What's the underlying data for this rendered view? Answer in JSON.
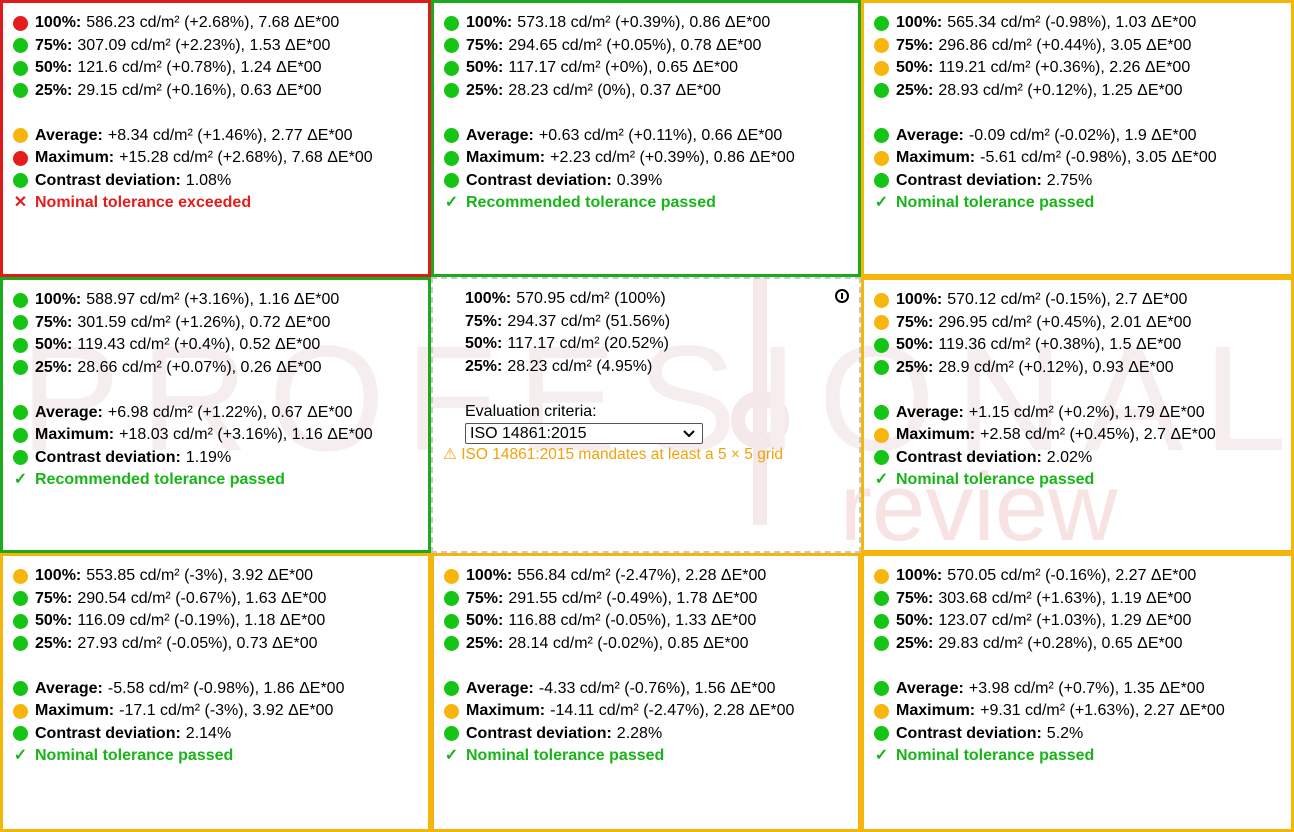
{
  "colors": {
    "green": "#15c415",
    "yellow": "#f7b50e",
    "red": "#e51c1c",
    "warning": "#f0a30a"
  },
  "center": {
    "rows": [
      {
        "label": "100%:",
        "value": "570.95 cd/m² (100%)"
      },
      {
        "label": "75%:",
        "value": "294.37 cd/m² (51.56%)"
      },
      {
        "label": "50%:",
        "value": "117.17 cd/m² (20.52%)"
      },
      {
        "label": "25%:",
        "value": "28.23 cd/m² (4.95%)"
      }
    ],
    "criteria_label": "Evaluation criteria:",
    "criteria_selected": "ISO 14861:2015",
    "warning": "⚠ ISO 14861:2015 mandates at least a 5 × 5 grid",
    "info_icon": "info-circle-icon"
  },
  "cells": [
    {
      "border": "red",
      "rows": [
        {
          "status": "red",
          "label": "100%:",
          "value": "586.23 cd/m² (+2.68%), 7.68 ΔE*00"
        },
        {
          "status": "green",
          "label": "75%:",
          "value": "307.09 cd/m² (+2.23%), 1.53 ΔE*00"
        },
        {
          "status": "green",
          "label": "50%:",
          "value": "121.6 cd/m² (+0.78%), 1.24 ΔE*00"
        },
        {
          "status": "green",
          "label": "25%:",
          "value": "29.15 cd/m² (+0.16%), 0.63 ΔE*00"
        }
      ],
      "summary": [
        {
          "status": "yellow",
          "label": "Average:",
          "value": "+8.34 cd/m² (+1.46%), 2.77 ΔE*00"
        },
        {
          "status": "red",
          "label": "Maximum:",
          "value": "+15.28 cd/m² (+2.68%), 7.68 ΔE*00"
        },
        {
          "status": "green",
          "label": "Contrast deviation:",
          "value": "1.08%"
        }
      ],
      "result": {
        "pass": false,
        "mark": "✕",
        "text": "Nominal tolerance exceeded"
      }
    },
    {
      "border": "green",
      "rows": [
        {
          "status": "green",
          "label": "100%:",
          "value": "573.18 cd/m² (+0.39%), 0.86 ΔE*00"
        },
        {
          "status": "green",
          "label": "75%:",
          "value": "294.65 cd/m² (+0.05%), 0.78 ΔE*00"
        },
        {
          "status": "green",
          "label": "50%:",
          "value": "117.17 cd/m² (+0%), 0.65 ΔE*00"
        },
        {
          "status": "green",
          "label": "25%:",
          "value": "28.23 cd/m² (0%), 0.37 ΔE*00"
        }
      ],
      "summary": [
        {
          "status": "green",
          "label": "Average:",
          "value": "+0.63 cd/m² (+0.11%), 0.66 ΔE*00"
        },
        {
          "status": "green",
          "label": "Maximum:",
          "value": "+2.23 cd/m² (+0.39%), 0.86 ΔE*00"
        },
        {
          "status": "green",
          "label": "Contrast deviation:",
          "value": "0.39%"
        }
      ],
      "result": {
        "pass": true,
        "mark": "✓",
        "text": "Recommended tolerance passed"
      }
    },
    {
      "border": "yellow",
      "rows": [
        {
          "status": "green",
          "label": "100%:",
          "value": "565.34 cd/m² (-0.98%), 1.03 ΔE*00"
        },
        {
          "status": "yellow",
          "label": "75%:",
          "value": "296.86 cd/m² (+0.44%), 3.05 ΔE*00"
        },
        {
          "status": "yellow",
          "label": "50%:",
          "value": "119.21 cd/m² (+0.36%), 2.26 ΔE*00"
        },
        {
          "status": "green",
          "label": "25%:",
          "value": "28.93 cd/m² (+0.12%), 1.25 ΔE*00"
        }
      ],
      "summary": [
        {
          "status": "green",
          "label": "Average:",
          "value": "-0.09 cd/m² (-0.02%), 1.9 ΔE*00"
        },
        {
          "status": "yellow",
          "label": "Maximum:",
          "value": "-5.61 cd/m² (-0.98%), 3.05 ΔE*00"
        },
        {
          "status": "green",
          "label": "Contrast deviation:",
          "value": "2.75%"
        }
      ],
      "result": {
        "pass": true,
        "mark": "✓",
        "text": "Nominal tolerance passed"
      }
    },
    {
      "border": "green",
      "rows": [
        {
          "status": "green",
          "label": "100%:",
          "value": "588.97 cd/m² (+3.16%), 1.16 ΔE*00"
        },
        {
          "status": "green",
          "label": "75%:",
          "value": "301.59 cd/m² (+1.26%), 0.72 ΔE*00"
        },
        {
          "status": "green",
          "label": "50%:",
          "value": "119.43 cd/m² (+0.4%), 0.52 ΔE*00"
        },
        {
          "status": "green",
          "label": "25%:",
          "value": "28.66 cd/m² (+0.07%), 0.26 ΔE*00"
        }
      ],
      "summary": [
        {
          "status": "green",
          "label": "Average:",
          "value": "+6.98 cd/m² (+1.22%), 0.67 ΔE*00"
        },
        {
          "status": "green",
          "label": "Maximum:",
          "value": "+18.03 cd/m² (+3.16%), 1.16 ΔE*00"
        },
        {
          "status": "green",
          "label": "Contrast deviation:",
          "value": "1.19%"
        }
      ],
      "result": {
        "pass": true,
        "mark": "✓",
        "text": "Recommended tolerance passed"
      }
    },
    null,
    {
      "border": "yellow",
      "rows": [
        {
          "status": "yellow",
          "label": "100%:",
          "value": "570.12 cd/m² (-0.15%), 2.7 ΔE*00"
        },
        {
          "status": "yellow",
          "label": "75%:",
          "value": "296.95 cd/m² (+0.45%), 2.01 ΔE*00"
        },
        {
          "status": "green",
          "label": "50%:",
          "value": "119.36 cd/m² (+0.38%), 1.5 ΔE*00"
        },
        {
          "status": "green",
          "label": "25%:",
          "value": "28.9 cd/m² (+0.12%), 0.93 ΔE*00"
        }
      ],
      "summary": [
        {
          "status": "green",
          "label": "Average:",
          "value": "+1.15 cd/m² (+0.2%), 1.79 ΔE*00"
        },
        {
          "status": "yellow",
          "label": "Maximum:",
          "value": "+2.58 cd/m² (+0.45%), 2.7 ΔE*00"
        },
        {
          "status": "green",
          "label": "Contrast deviation:",
          "value": "2.02%"
        }
      ],
      "result": {
        "pass": true,
        "mark": "✓",
        "text": "Nominal tolerance passed"
      }
    },
    {
      "border": "yellow",
      "rows": [
        {
          "status": "yellow",
          "label": "100%:",
          "value": "553.85 cd/m² (-3%), 3.92 ΔE*00"
        },
        {
          "status": "green",
          "label": "75%:",
          "value": "290.54 cd/m² (-0.67%), 1.63 ΔE*00"
        },
        {
          "status": "green",
          "label": "50%:",
          "value": "116.09 cd/m² (-0.19%), 1.18 ΔE*00"
        },
        {
          "status": "green",
          "label": "25%:",
          "value": "27.93 cd/m² (-0.05%), 0.73 ΔE*00"
        }
      ],
      "summary": [
        {
          "status": "green",
          "label": "Average:",
          "value": "-5.58 cd/m² (-0.98%), 1.86 ΔE*00"
        },
        {
          "status": "yellow",
          "label": "Maximum:",
          "value": "-17.1 cd/m² (-3%), 3.92 ΔE*00"
        },
        {
          "status": "green",
          "label": "Contrast deviation:",
          "value": "2.14%"
        }
      ],
      "result": {
        "pass": true,
        "mark": "✓",
        "text": "Nominal tolerance passed"
      }
    },
    {
      "border": "yellow",
      "rows": [
        {
          "status": "yellow",
          "label": "100%:",
          "value": "556.84 cd/m² (-2.47%), 2.28 ΔE*00"
        },
        {
          "status": "green",
          "label": "75%:",
          "value": "291.55 cd/m² (-0.49%), 1.78 ΔE*00"
        },
        {
          "status": "green",
          "label": "50%:",
          "value": "116.88 cd/m² (-0.05%), 1.33 ΔE*00"
        },
        {
          "status": "green",
          "label": "25%:",
          "value": "28.14 cd/m² (-0.02%), 0.85 ΔE*00"
        }
      ],
      "summary": [
        {
          "status": "green",
          "label": "Average:",
          "value": "-4.33 cd/m² (-0.76%), 1.56 ΔE*00"
        },
        {
          "status": "yellow",
          "label": "Maximum:",
          "value": "-14.11 cd/m² (-2.47%), 2.28 ΔE*00"
        },
        {
          "status": "green",
          "label": "Contrast deviation:",
          "value": "2.28%"
        }
      ],
      "result": {
        "pass": true,
        "mark": "✓",
        "text": "Nominal tolerance passed"
      }
    },
    {
      "border": "yellow",
      "rows": [
        {
          "status": "yellow",
          "label": "100%:",
          "value": "570.05 cd/m² (-0.16%), 2.27 ΔE*00"
        },
        {
          "status": "green",
          "label": "75%:",
          "value": "303.68 cd/m² (+1.63%), 1.19 ΔE*00"
        },
        {
          "status": "green",
          "label": "50%:",
          "value": "123.07 cd/m² (+1.03%), 1.29 ΔE*00"
        },
        {
          "status": "green",
          "label": "25%:",
          "value": "29.83 cd/m² (+0.28%), 0.65 ΔE*00"
        }
      ],
      "summary": [
        {
          "status": "green",
          "label": "Average:",
          "value": "+3.98 cd/m² (+0.7%), 1.35 ΔE*00"
        },
        {
          "status": "yellow",
          "label": "Maximum:",
          "value": "+9.31 cd/m² (+1.63%), 2.27 ΔE*00"
        },
        {
          "status": "green",
          "label": "Contrast deviation:",
          "value": "5.2%"
        }
      ],
      "result": {
        "pass": true,
        "mark": "✓",
        "text": "Nominal tolerance passed"
      }
    }
  ]
}
